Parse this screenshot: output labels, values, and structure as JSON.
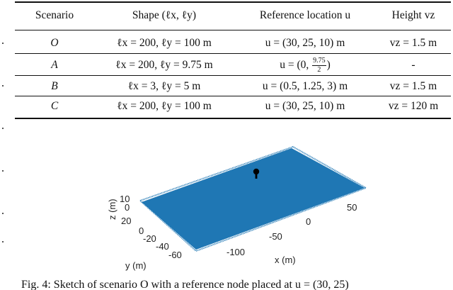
{
  "table": {
    "headers": {
      "scenario": "Scenario",
      "shape": "Shape (ℓx, ℓy)",
      "reference": "Reference location u",
      "height": "Height vz"
    },
    "rows": [
      {
        "scenario": "O",
        "shape": "ℓx = 200, ℓy = 100 m",
        "reference": "u = (30, 25, 10) m",
        "height": "vz = 1.5 m"
      },
      {
        "scenario": "A",
        "shape": "ℓx = 200, ℓy = 9.75 m",
        "reference_prefix": "u = (0, ",
        "reference_num": "9.75",
        "reference_den": "2",
        "reference_suffix": ")",
        "height": "-"
      },
      {
        "scenario": "B",
        "shape": "ℓx = 3, ℓy = 5 m",
        "reference": "u = (0.5, 1.25, 3) m",
        "height": "vz = 1.5 m"
      },
      {
        "scenario": "C",
        "shape": "ℓx = 200, ℓy = 100 m",
        "reference": "u = (30, 25, 10) m",
        "height": "vz = 120 m"
      }
    ]
  },
  "figure": {
    "z_label": "z (m)",
    "y_label": "y (m)",
    "x_label": "x (m)",
    "z_ticks": [
      "10",
      "0"
    ],
    "y_ticks": [
      "20",
      "0",
      "-20",
      "-40",
      "-60"
    ],
    "x_ticks": [
      "-100",
      "-50",
      "0",
      "50"
    ],
    "surface_color": "#1f77b4",
    "node_color": "#000000"
  },
  "caption": "Fig. 4: Sketch of scenario O with a reference node placed at u = (30, 25)"
}
